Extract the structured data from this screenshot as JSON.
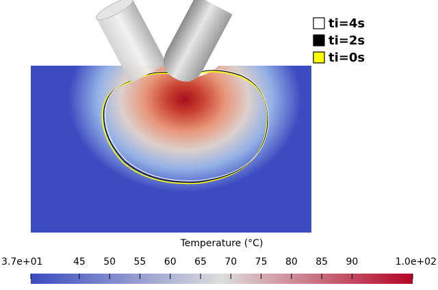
{
  "legend": [
    {
      "label": "ti=4s",
      "color": "#ffffff"
    },
    {
      "label": "ti=2s",
      "color": "#000000"
    },
    {
      "label": "ti=0s",
      "color": "#ffff00"
    }
  ],
  "colorbar": {
    "title": "Temperature (°C)",
    "range": [
      37,
      100
    ],
    "colors": [
      "#3b4cc0",
      "#dddddd",
      "#b40426"
    ],
    "ticks": [
      {
        "value": 37,
        "label": "3.7e+01"
      },
      45,
      50,
      55,
      60,
      65,
      70,
      75,
      80,
      85,
      90,
      {
        "value": 100,
        "label": "1.0e+02"
      }
    ]
  }
}
